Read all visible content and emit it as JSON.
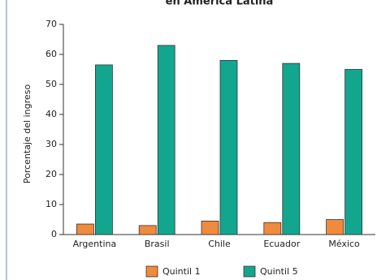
{
  "chart_data": {
    "type": "bar",
    "title": "en América Latina",
    "y_label": "Porcentaje del ingreso",
    "categories": [
      "Argentina",
      "Brasil",
      "Chile",
      "Ecuador",
      "México"
    ],
    "series": [
      {
        "name": "Quintil 1",
        "color": "#f08a3c",
        "values": [
          3.5,
          3,
          4.5,
          4,
          5
        ]
      },
      {
        "name": "Quintil 5",
        "color": "#13a68f",
        "values": [
          56.5,
          63,
          58,
          57,
          55
        ]
      }
    ],
    "ylim": [
      0,
      70
    ],
    "yticks": [
      0,
      10,
      20,
      30,
      40,
      50,
      60,
      70
    ]
  }
}
